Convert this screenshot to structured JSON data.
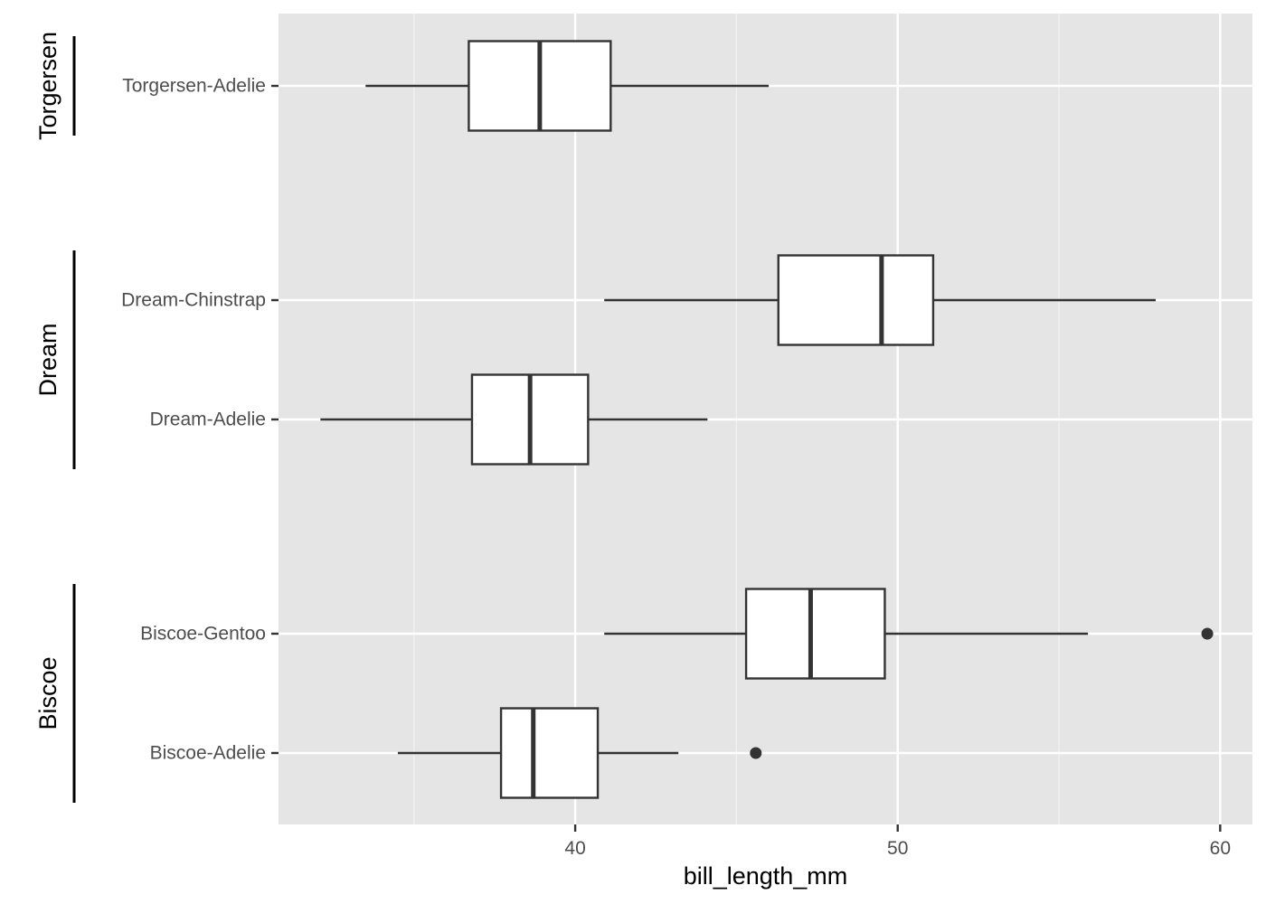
{
  "chart_data": {
    "type": "boxplot",
    "orientation": "horizontal",
    "xlabel": "bill_length_mm",
    "ylabel": "",
    "xlim": [
      30.8,
      61.0
    ],
    "x_ticks": [
      40,
      50,
      60
    ],
    "grid": true,
    "groups": [
      {
        "name": "Torgersen",
        "categories": [
          "Torgersen-Adelie"
        ]
      },
      {
        "name": "Dream",
        "categories": [
          "Dream-Chinstrap",
          "Dream-Adelie"
        ]
      },
      {
        "name": "Biscoe",
        "categories": [
          "Biscoe-Gentoo",
          "Biscoe-Adelie"
        ]
      }
    ],
    "boxes": [
      {
        "label": "Torgersen-Adelie",
        "group": "Torgersen",
        "whisker_low": 33.5,
        "q1": 36.7,
        "median": 38.9,
        "q3": 41.1,
        "whisker_high": 46.0,
        "outliers": []
      },
      {
        "label": "Dream-Chinstrap",
        "group": "Dream",
        "whisker_low": 40.9,
        "q1": 46.3,
        "median": 49.5,
        "q3": 51.1,
        "whisker_high": 58.0,
        "outliers": []
      },
      {
        "label": "Dream-Adelie",
        "group": "Dream",
        "whisker_low": 32.1,
        "q1": 36.8,
        "median": 38.6,
        "q3": 40.4,
        "whisker_high": 44.1,
        "outliers": []
      },
      {
        "label": "Biscoe-Gentoo",
        "group": "Biscoe",
        "whisker_low": 40.9,
        "q1": 45.3,
        "median": 47.3,
        "q3": 49.6,
        "whisker_high": 55.9,
        "outliers": [
          59.6
        ]
      },
      {
        "label": "Biscoe-Adelie",
        "group": "Biscoe",
        "whisker_low": 34.5,
        "q1": 37.7,
        "median": 38.7,
        "q3": 40.7,
        "whisker_high": 43.2,
        "outliers": [
          45.6
        ]
      }
    ],
    "colors": {
      "panel_background": "#e5e5e5",
      "grid_major": "#ffffff",
      "grid_minor": "#f2f2f2",
      "box_fill": "#ffffff",
      "box_stroke": "#333333",
      "outlier": "#333333",
      "tick_label": "#4d4d4d",
      "group_bracket": "#000000"
    }
  }
}
